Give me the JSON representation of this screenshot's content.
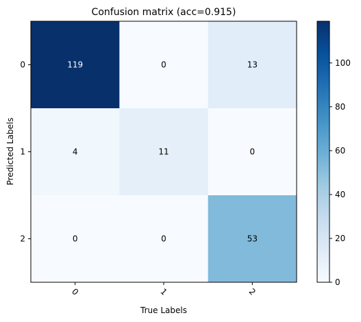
{
  "chart_data": {
    "type": "heatmap",
    "title": "Confusion matrix (acc=0.915)",
    "xlabel": "True Labels",
    "ylabel": "Predicted Labels",
    "x_ticks": [
      "0",
      "1",
      "2"
    ],
    "y_ticks": [
      "0",
      "1",
      "2"
    ],
    "matrix": [
      [
        119,
        0,
        13
      ],
      [
        4,
        11,
        0
      ],
      [
        0,
        0,
        53
      ]
    ],
    "colormap": "Blues",
    "colorbar": {
      "vmin": 0,
      "vmax": 119,
      "ticks": [
        0,
        20,
        40,
        60,
        80,
        100
      ]
    },
    "text_color_light": "#ffffff",
    "text_color_dark": "#000000"
  }
}
